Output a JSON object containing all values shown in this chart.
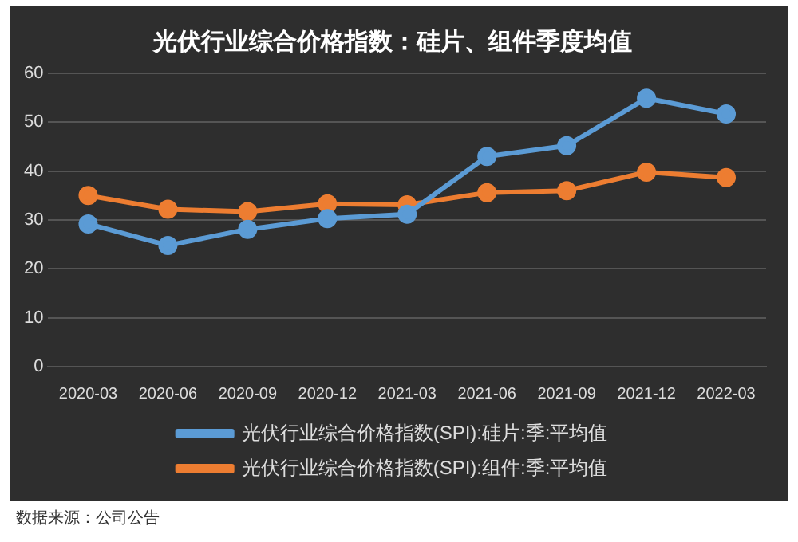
{
  "chart_data": {
    "type": "line",
    "title": "光伏行业综合价格指数：硅片、组件季度均值",
    "categories": [
      "2020-03",
      "2020-06",
      "2020-09",
      "2020-12",
      "2021-03",
      "2021-06",
      "2021-09",
      "2021-12",
      "2022-03"
    ],
    "series": [
      {
        "name": "光伏行业综合价格指数(SPI):硅片:季:平均值",
        "color": "#5b9bd5",
        "values": [
          29.2,
          24.8,
          28.1,
          30.3,
          31.2,
          43.0,
          45.2,
          54.9,
          51.7
        ]
      },
      {
        "name": "光伏行业综合价格指数(SPI):组件:季:平均值",
        "color": "#ed7d31",
        "values": [
          35.0,
          32.2,
          31.7,
          33.3,
          33.1,
          35.6,
          36.0,
          39.8,
          38.7
        ]
      }
    ],
    "ylim": [
      0,
      60
    ],
    "yticks": [
      0,
      10,
      20,
      30,
      40,
      50,
      60
    ],
    "grid": "y",
    "legend": "bottom",
    "marker": "circle",
    "line_style": "solid",
    "annotations": [
      "数据来源：公司公告"
    ]
  }
}
